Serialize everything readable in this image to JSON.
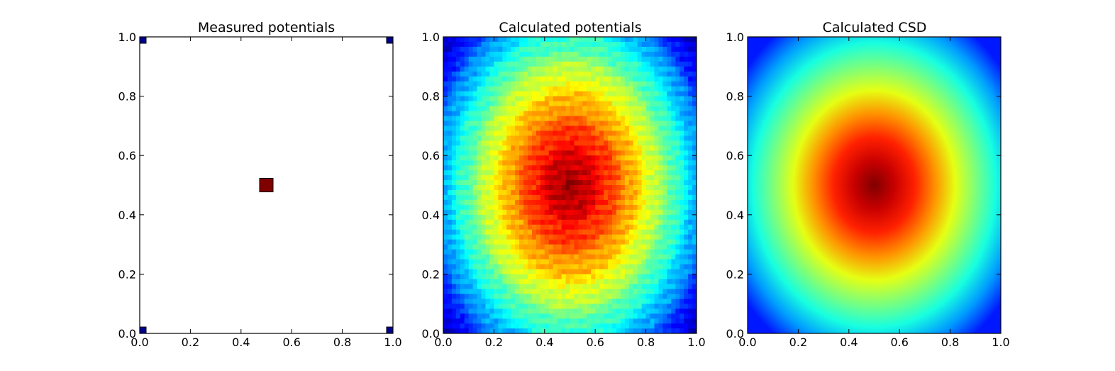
{
  "chart_data": [
    {
      "type": "scatter",
      "title": "Measured potentials",
      "xlabel": "",
      "ylabel": "",
      "xlim": [
        0,
        1
      ],
      "ylim": [
        0,
        1
      ],
      "xticks": [
        "0.0",
        "0.2",
        "0.4",
        "0.6",
        "0.8",
        "1.0"
      ],
      "yticks": [
        "0.0",
        "0.2",
        "0.4",
        "0.6",
        "0.8",
        "1.0"
      ],
      "colormap": "jet",
      "marker": "square",
      "points": [
        {
          "x": 0.0,
          "y": 0.0,
          "value": 0.0,
          "color": "#00008f"
        },
        {
          "x": 0.0,
          "y": 1.0,
          "value": 0.0,
          "color": "#00008f"
        },
        {
          "x": 1.0,
          "y": 0.0,
          "value": 0.0,
          "color": "#00008f"
        },
        {
          "x": 1.0,
          "y": 1.0,
          "value": 0.0,
          "color": "#00008f"
        },
        {
          "x": 0.5,
          "y": 0.5,
          "value": 1.0,
          "color": "#800000"
        }
      ],
      "grid": false
    },
    {
      "type": "heatmap",
      "title": "Calculated potentials",
      "xlabel": "",
      "ylabel": "",
      "xlim": [
        0,
        1
      ],
      "ylim": [
        0,
        1
      ],
      "xticks": [
        "0.0",
        "0.2",
        "0.4",
        "0.6",
        "0.8",
        "1.0"
      ],
      "yticks": [
        "0.0",
        "0.2",
        "0.4",
        "0.6",
        "0.8",
        "1.0"
      ],
      "colormap": "jet",
      "center": [
        0.5,
        0.5
      ],
      "peak_value": 1.0,
      "corner_value": 0.1,
      "profile": "radially decreasing, pixelated",
      "grid": false
    },
    {
      "type": "heatmap",
      "title": "Calculated CSD",
      "xlabel": "",
      "ylabel": "",
      "xlim": [
        0,
        1
      ],
      "ylim": [
        0,
        1
      ],
      "xticks": [
        "0.0",
        "0.2",
        "0.4",
        "0.6",
        "0.8",
        "1.0"
      ],
      "yticks": [
        "0.0",
        "0.2",
        "0.4",
        "0.6",
        "0.8",
        "1.0"
      ],
      "colormap": "jet",
      "center": [
        0.5,
        0.5
      ],
      "peak_value": 1.0,
      "corner_value": 0.05,
      "profile": "radially decreasing, smooth",
      "grid": false
    }
  ]
}
